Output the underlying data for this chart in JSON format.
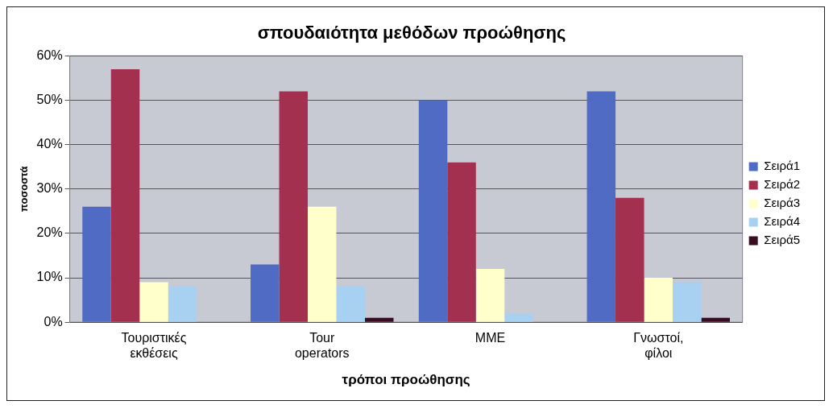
{
  "chart_data": {
    "type": "bar",
    "title": "σπουδαιότητα μεθόδων προώθησης",
    "xlabel": "τρόποι προώθησης",
    "ylabel": "ποσοστά",
    "categories": [
      "Τουριστικές εκθέσεις",
      "Tour operators",
      "ΜΜΕ",
      "Γνωστοί, φίλοι"
    ],
    "series": [
      {
        "name": "Σειρά1",
        "color": "#4f6bc4",
        "values": [
          26,
          13,
          50,
          52
        ]
      },
      {
        "name": "Σειρά2",
        "color": "#a3304f",
        "values": [
          57,
          52,
          36,
          28
        ]
      },
      {
        "name": "Σειρά3",
        "color": "#ffffcc",
        "values": [
          9,
          26,
          12,
          10
        ]
      },
      {
        "name": "Σειρά4",
        "color": "#a8d0f0",
        "values": [
          8,
          8,
          2,
          9
        ]
      },
      {
        "name": "Σειρά5",
        "color": "#3a0c22",
        "values": [
          0,
          1,
          0,
          1
        ]
      }
    ],
    "ylim": [
      0,
      60
    ],
    "yticks": [
      {
        "value": 0,
        "label": "0%"
      },
      {
        "value": 10,
        "label": "10%"
      },
      {
        "value": 20,
        "label": "20%"
      },
      {
        "value": 30,
        "label": "30%"
      },
      {
        "value": 40,
        "label": "40%"
      },
      {
        "value": 50,
        "label": "50%"
      },
      {
        "value": 60,
        "label": "60%"
      }
    ],
    "grid": "y",
    "legend": "right"
  }
}
